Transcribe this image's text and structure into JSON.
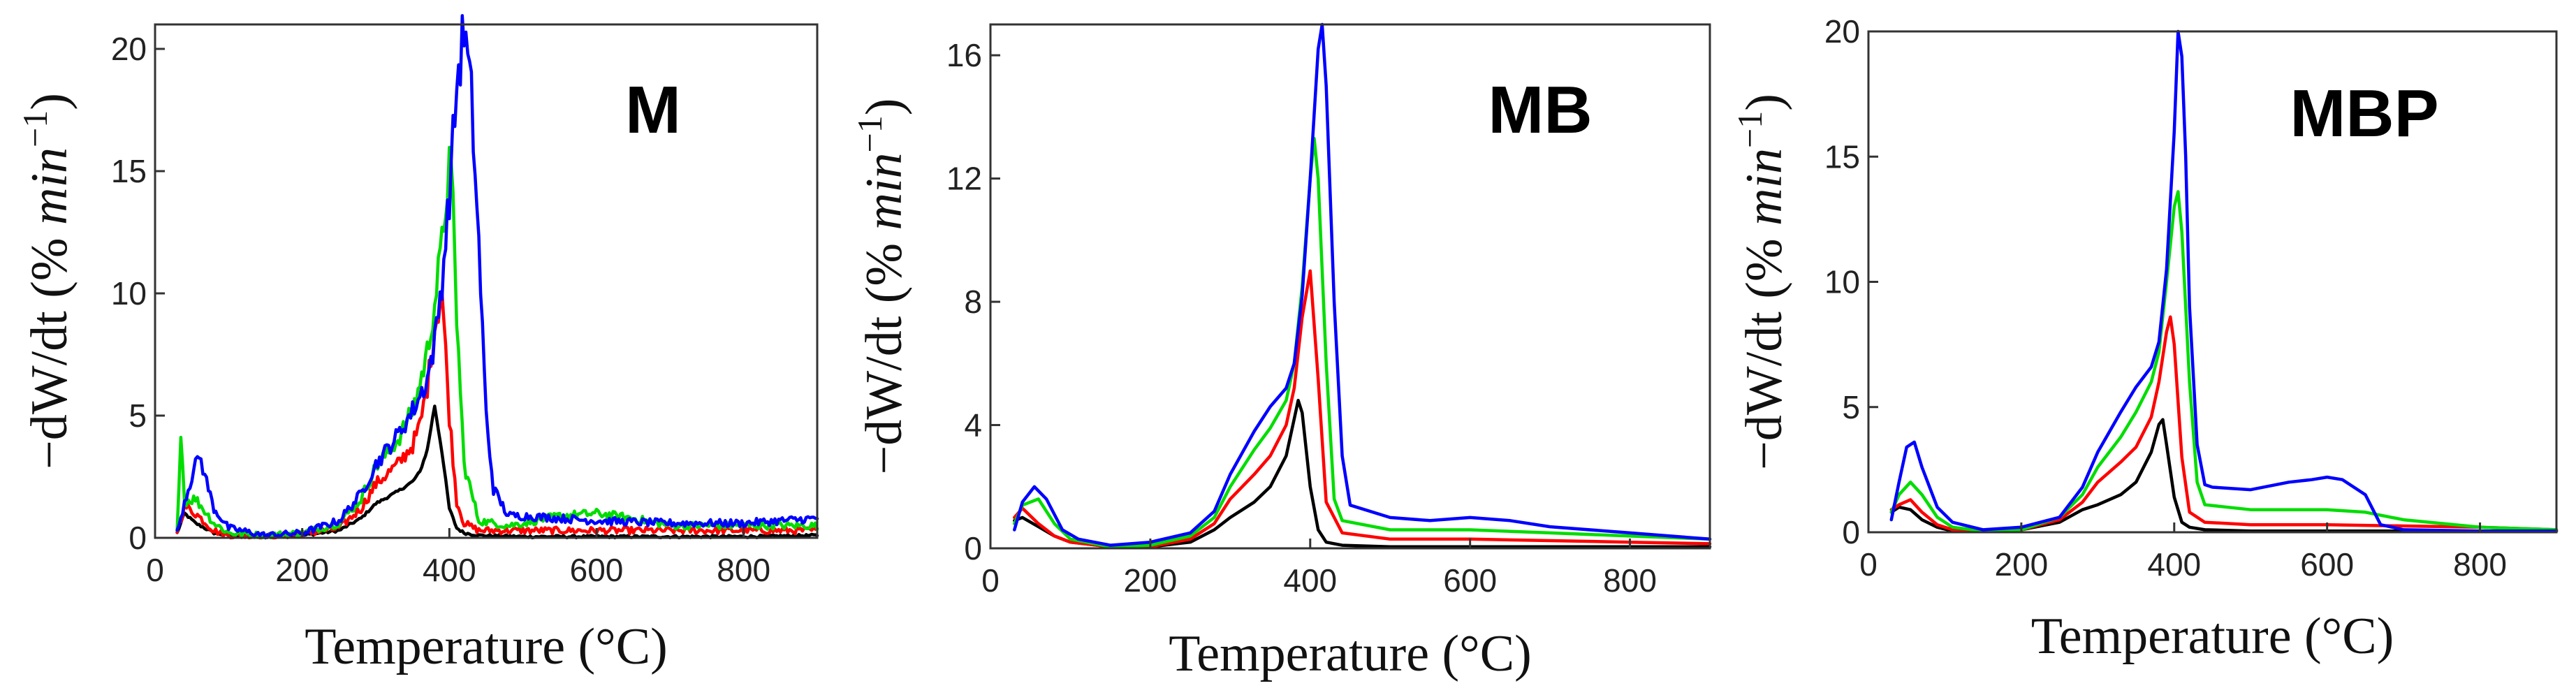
{
  "chart_data": [
    {
      "type": "line",
      "title": "M",
      "xlabel": "Temperature (°C)",
      "ylabel_parts": [
        "−dW/dt (% ",
        "min",
        "−1",
        ")"
      ],
      "xlim": [
        0,
        900
      ],
      "ylim": [
        0,
        21
      ],
      "xticks": [
        0,
        200,
        400,
        600,
        800
      ],
      "yticks": [
        0,
        5,
        10,
        15,
        20
      ],
      "noisy": true,
      "series": [
        {
          "name": "black",
          "color": "#000000",
          "x": [
            30,
            40,
            55,
            80,
            100,
            150,
            200,
            250,
            280,
            300,
            330,
            350,
            360,
            370,
            380,
            390,
            400,
            410,
            420,
            440,
            500,
            600,
            700,
            800,
            900
          ],
          "y": [
            0.2,
            1.0,
            0.6,
            0.2,
            0.1,
            0.05,
            0.1,
            0.3,
            0.8,
            1.4,
            1.9,
            2.3,
            2.7,
            3.6,
            5.4,
            3.5,
            1.2,
            0.4,
            0.2,
            0.1,
            0.05,
            0.05,
            0.05,
            0.05,
            0.1
          ]
        },
        {
          "name": "red",
          "color": "#ff0000",
          "x": [
            30,
            40,
            55,
            80,
            100,
            150,
            200,
            250,
            280,
            300,
            330,
            350,
            360,
            370,
            380,
            390,
            400,
            410,
            420,
            440,
            500,
            600,
            700,
            800,
            900
          ],
          "y": [
            0.3,
            1.3,
            1.0,
            0.3,
            0.1,
            0.05,
            0.15,
            0.4,
            1.2,
            2.2,
            3.0,
            3.8,
            4.6,
            6.2,
            8.6,
            10.1,
            5.0,
            1.5,
            0.6,
            0.3,
            0.3,
            0.3,
            0.3,
            0.3,
            0.3
          ]
        },
        {
          "name": "green",
          "color": "#00dd00",
          "x": [
            30,
            35,
            40,
            55,
            80,
            100,
            150,
            200,
            250,
            280,
            300,
            330,
            350,
            360,
            370,
            380,
            390,
            400,
            405,
            410,
            420,
            440,
            480,
            500,
            550,
            600,
            650,
            700,
            800,
            900
          ],
          "y": [
            0.2,
            4.5,
            1.5,
            1.6,
            0.6,
            0.2,
            0.1,
            0.2,
            0.6,
            1.6,
            2.9,
            4.0,
            5.2,
            6.3,
            7.6,
            9.6,
            12.0,
            15.4,
            13.5,
            9.0,
            3.0,
            0.7,
            0.5,
            0.6,
            0.9,
            1.0,
            0.8,
            0.5,
            0.5,
            0.5
          ]
        },
        {
          "name": "blue",
          "color": "#0000ff",
          "x": [
            30,
            40,
            50,
            60,
            80,
            100,
            150,
            200,
            250,
            280,
            300,
            330,
            350,
            360,
            370,
            380,
            390,
            400,
            410,
            420,
            430,
            440,
            450,
            460,
            480,
            500,
            600,
            700,
            800,
            900
          ],
          "y": [
            0.2,
            1.5,
            2.5,
            3.4,
            1.2,
            0.4,
            0.1,
            0.2,
            0.7,
            1.8,
            3.0,
            4.2,
            5.2,
            5.8,
            6.5,
            8.0,
            10.5,
            14.0,
            18.5,
            20.8,
            18.0,
            12.0,
            5.0,
            2.0,
            0.9,
            0.9,
            0.7,
            0.6,
            0.6,
            0.8
          ]
        }
      ]
    },
    {
      "type": "line",
      "title": "MB",
      "xlabel": "Temperature (°C)",
      "ylabel_parts": [
        "−dW/dt (% ",
        "min",
        "−1",
        ")"
      ],
      "xlim": [
        0,
        900
      ],
      "ylim": [
        0,
        17
      ],
      "xticks": [
        0,
        200,
        400,
        600,
        800
      ],
      "yticks": [
        0,
        4,
        8,
        12,
        16
      ],
      "noisy": false,
      "series": [
        {
          "name": "black",
          "color": "#000000",
          "x": [
            30,
            40,
            60,
            80,
            100,
            150,
            200,
            250,
            280,
            300,
            330,
            350,
            370,
            380,
            385,
            390,
            400,
            410,
            420,
            440,
            500,
            600,
            700,
            800,
            900
          ],
          "y": [
            0.9,
            1.0,
            0.7,
            0.4,
            0.2,
            0.05,
            0.05,
            0.2,
            0.6,
            1.0,
            1.5,
            2.0,
            3.0,
            4.2,
            4.8,
            4.4,
            2.0,
            0.6,
            0.2,
            0.1,
            0.05,
            0.05,
            0.05,
            0.05,
            0.05
          ]
        },
        {
          "name": "red",
          "color": "#ff0000",
          "x": [
            30,
            40,
            60,
            80,
            100,
            150,
            200,
            250,
            280,
            300,
            330,
            350,
            370,
            380,
            390,
            400,
            410,
            420,
            440,
            500,
            600,
            700,
            800,
            900
          ],
          "y": [
            1.0,
            1.3,
            0.8,
            0.4,
            0.2,
            0.05,
            0.05,
            0.3,
            0.8,
            1.6,
            2.4,
            3.0,
            4.0,
            5.2,
            7.5,
            9.0,
            5.5,
            1.5,
            0.5,
            0.3,
            0.3,
            0.25,
            0.2,
            0.15
          ]
        },
        {
          "name": "green",
          "color": "#00dd00",
          "x": [
            30,
            40,
            60,
            80,
            100,
            150,
            200,
            250,
            280,
            300,
            330,
            350,
            370,
            380,
            390,
            400,
            405,
            410,
            420,
            430,
            440,
            500,
            600,
            700,
            800,
            900
          ],
          "y": [
            0.8,
            1.4,
            1.6,
            0.8,
            0.3,
            0.05,
            0.1,
            0.4,
            1.0,
            2.0,
            3.2,
            3.9,
            4.8,
            6.0,
            8.5,
            12.0,
            13.3,
            12.0,
            6.0,
            1.6,
            0.9,
            0.6,
            0.6,
            0.5,
            0.4,
            0.3
          ]
        },
        {
          "name": "blue",
          "color": "#0000ff",
          "x": [
            30,
            40,
            55,
            70,
            90,
            110,
            150,
            200,
            250,
            280,
            300,
            330,
            350,
            370,
            380,
            390,
            400,
            410,
            415,
            420,
            430,
            440,
            450,
            500,
            550,
            600,
            650,
            700,
            800,
            900
          ],
          "y": [
            0.6,
            1.5,
            2.0,
            1.6,
            0.6,
            0.3,
            0.1,
            0.2,
            0.5,
            1.2,
            2.4,
            3.8,
            4.6,
            5.2,
            6.0,
            8.2,
            12.0,
            16.2,
            17.0,
            15.0,
            8.0,
            3.0,
            1.4,
            1.0,
            0.9,
            1.0,
            0.9,
            0.7,
            0.5,
            0.3
          ]
        }
      ]
    },
    {
      "type": "line",
      "title": "MBP",
      "xlabel": "Temperature (°C)",
      "ylabel_parts": [
        "−dW/dt (% ",
        "min",
        "−1",
        ")"
      ],
      "xlim": [
        0,
        900
      ],
      "ylim": [
        0,
        20
      ],
      "xticks": [
        0,
        200,
        400,
        600,
        800
      ],
      "yticks": [
        0,
        5,
        10,
        15,
        20
      ],
      "noisy": false,
      "series": [
        {
          "name": "black",
          "color": "#000000",
          "x": [
            30,
            40,
            55,
            70,
            90,
            110,
            150,
            200,
            250,
            280,
            300,
            330,
            350,
            370,
            380,
            385,
            390,
            400,
            410,
            420,
            440,
            500,
            600,
            700,
            800,
            900
          ],
          "y": [
            0.8,
            1.0,
            0.9,
            0.5,
            0.2,
            0.05,
            0.05,
            0.1,
            0.4,
            0.9,
            1.1,
            1.5,
            2.0,
            3.2,
            4.3,
            4.5,
            3.5,
            1.4,
            0.4,
            0.2,
            0.1,
            0.05,
            0.05,
            0.05,
            0.05,
            0.05
          ]
        },
        {
          "name": "red",
          "color": "#ff0000",
          "x": [
            30,
            40,
            55,
            70,
            90,
            110,
            150,
            200,
            250,
            280,
            300,
            330,
            350,
            370,
            380,
            390,
            395,
            400,
            410,
            420,
            440,
            500,
            600,
            700,
            800,
            900
          ],
          "y": [
            0.9,
            1.1,
            1.3,
            0.8,
            0.3,
            0.1,
            0.05,
            0.1,
            0.5,
            1.2,
            2.0,
            2.8,
            3.4,
            4.6,
            6.0,
            8.0,
            8.6,
            7.5,
            3.0,
            0.8,
            0.4,
            0.3,
            0.3,
            0.25,
            0.2,
            0.1
          ]
        },
        {
          "name": "green",
          "color": "#00dd00",
          "x": [
            30,
            40,
            55,
            70,
            90,
            110,
            150,
            200,
            250,
            280,
            300,
            330,
            350,
            370,
            380,
            390,
            400,
            405,
            410,
            420,
            430,
            440,
            500,
            550,
            600,
            650,
            700,
            800,
            900
          ],
          "y": [
            0.8,
            1.5,
            2.0,
            1.5,
            0.6,
            0.2,
            0.05,
            0.1,
            0.6,
            1.5,
            2.6,
            3.8,
            4.8,
            6.0,
            7.2,
            10.0,
            13.0,
            13.6,
            12.0,
            6.0,
            2.0,
            1.1,
            0.9,
            0.9,
            0.9,
            0.8,
            0.5,
            0.2,
            0.1
          ]
        },
        {
          "name": "blue",
          "color": "#0000ff",
          "x": [
            30,
            40,
            50,
            60,
            70,
            90,
            110,
            150,
            200,
            250,
            280,
            300,
            330,
            350,
            370,
            380,
            390,
            400,
            405,
            410,
            415,
            420,
            430,
            440,
            450,
            500,
            550,
            580,
            600,
            620,
            650,
            670,
            700,
            800,
            900
          ],
          "y": [
            0.5,
            2.0,
            3.4,
            3.6,
            2.6,
            1.0,
            0.4,
            0.1,
            0.2,
            0.6,
            1.8,
            3.2,
            4.8,
            5.8,
            6.6,
            7.6,
            10.5,
            16.0,
            20.0,
            19.0,
            15.0,
            9.0,
            3.5,
            1.9,
            1.8,
            1.7,
            2.0,
            2.1,
            2.2,
            2.1,
            1.5,
            0.3,
            0.1,
            0.05,
            0.05
          ]
        }
      ]
    }
  ]
}
